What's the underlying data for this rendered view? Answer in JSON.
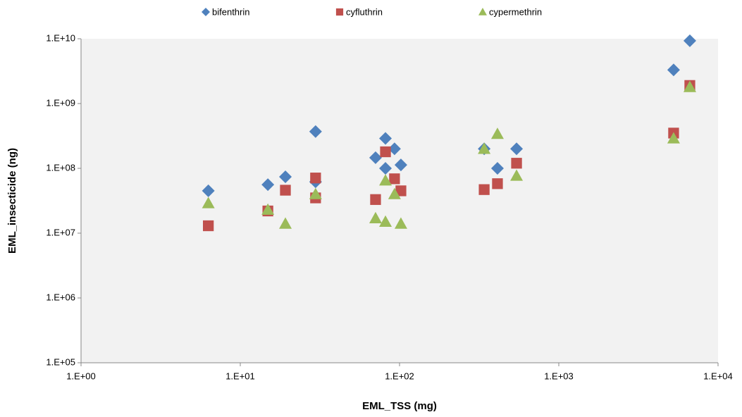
{
  "chart_data": {
    "type": "scatter",
    "x_label": "EML_TSS (mg)",
    "y_label": "EML_insecticide (ng)",
    "log_x": true,
    "log_y": true,
    "xlim": [
      1,
      10000
    ],
    "ylim": [
      100000,
      10000000000
    ],
    "xticks": [
      {
        "value": 1,
        "label": "1.E+00"
      },
      {
        "value": 10,
        "label": "1.E+01"
      },
      {
        "value": 100,
        "label": "1.E+02"
      },
      {
        "value": 1000,
        "label": "1.E+03"
      },
      {
        "value": 10000,
        "label": "1.E+04"
      }
    ],
    "yticks": [
      {
        "value": 100000,
        "label": "1.E+05"
      },
      {
        "value": 1000000,
        "label": "1.E+06"
      },
      {
        "value": 10000000,
        "label": "1.E+07"
      },
      {
        "value": 100000000,
        "label": "1.E+08"
      },
      {
        "value": 1000000000,
        "label": "1.E+09"
      },
      {
        "value": 10000000000,
        "label": "1.E+10"
      }
    ],
    "legend_position": "top",
    "series": [
      {
        "name": "bifenthrin",
        "color": "#4f81bd",
        "marker": "diamond",
        "x": [
          6.3,
          14.9,
          19.2,
          29.7,
          29.7,
          70.7,
          81.6,
          81.6,
          93,
          102,
          340,
          412,
          543,
          5260,
          6650
        ],
        "values": [
          45000000,
          56000000,
          74000000,
          370000000,
          62000000,
          146000000,
          290000000,
          100000000,
          200000000,
          113000000,
          200000000,
          100000000,
          200000000,
          3300000000,
          9300000000
        ]
      },
      {
        "name": "cyfluthrin",
        "color": "#c0504d",
        "marker": "square",
        "x": [
          6.3,
          14.9,
          19.2,
          29.7,
          29.7,
          70.7,
          81.6,
          93,
          102,
          340,
          412,
          543,
          5260,
          6650
        ],
        "values": [
          13000000,
          22000000,
          46000000,
          71000000,
          35000000,
          33000000,
          180000000,
          69000000,
          45000000,
          47000000,
          58000000,
          120000000,
          350000000,
          1900000000
        ]
      },
      {
        "name": "cypermethrin",
        "color": "#9bbb59",
        "marker": "triangle",
        "x": [
          6.3,
          14.9,
          19.2,
          29.7,
          70.7,
          81.6,
          81.6,
          93,
          102,
          340,
          412,
          543,
          5260,
          6650
        ],
        "values": [
          29000000,
          23000000,
          14000000,
          40000000,
          17000000,
          15000000,
          65000000,
          40000000,
          14000000,
          200000000,
          340000000,
          77000000,
          290000000,
          1800000000
        ]
      }
    ]
  }
}
